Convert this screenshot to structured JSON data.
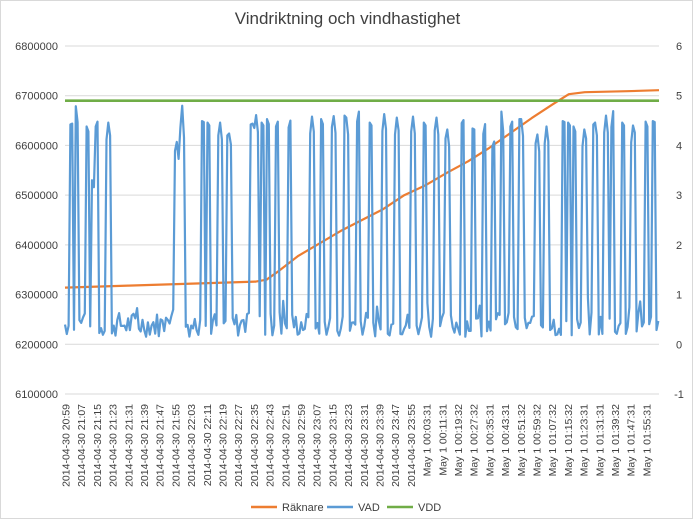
{
  "chart_data": {
    "type": "line",
    "title": "Vindriktning och vindhastighet",
    "primary_axis": {
      "ylim": [
        6100000,
        6800000
      ],
      "ticks": [
        6100000,
        6200000,
        6300000,
        6400000,
        6500000,
        6600000,
        6700000,
        6800000
      ]
    },
    "secondary_axis": {
      "ylim": [
        -1,
        6
      ],
      "ticks": [
        -1,
        0,
        1,
        2,
        3,
        4,
        5,
        6
      ]
    },
    "x_tick_labels": [
      "2014-04-30 20:59",
      "2014-04-30 21:07",
      "2014-04-30 21:15",
      "2014-04-30 21:23",
      "2014-04-30 21:31",
      "2014-04-30 21:39",
      "2014-04-30 21:47",
      "2014-04-30 21:55",
      "2014-04-30 22:03",
      "2014-04-30 22:11",
      "2014-04-30 22:19",
      "2014-04-30 22:27",
      "2014-04-30 22:35",
      "2014-04-30 22:43",
      "2014-04-30 22:51",
      "2014-04-30 22:59",
      "2014-04-30 23:07",
      "2014-04-30 23:15",
      "2014-04-30 23:23",
      "2014-04-30 23:31",
      "2014-04-30 23:39",
      "2014-04-30 23:47",
      "2014-04-30 23:55",
      "May  1 00:03:31",
      "May  1 00:11:31",
      "May  1 00:19:32",
      "May  1 00:27:32",
      "May  1 00:35:31",
      "May  1 00:43:31",
      "May  1 00:51:32",
      "May  1 00:59:32",
      "May  1 01:07:32",
      "May  1 01:15:32",
      "May  1 01:23:31",
      "May  1 01:31:31",
      "May  1 01:39:32",
      "May  1 01:47:31",
      "May  1 01:55:31"
    ],
    "series": [
      {
        "name": "Räknare",
        "axis": "primary",
        "color": "#ED7D31",
        "breakpoints": [
          [
            0,
            6314000
          ],
          [
            3,
            6316000
          ],
          [
            6,
            6318000
          ],
          [
            9,
            6320000
          ],
          [
            12,
            6322000
          ],
          [
            15,
            6324000
          ],
          [
            18,
            6326000
          ],
          [
            19,
            6330000
          ],
          [
            20,
            6345000
          ],
          [
            22,
            6378000
          ],
          [
            26,
            6428000
          ],
          [
            28,
            6450000
          ],
          [
            30,
            6472000
          ],
          [
            32,
            6500000
          ],
          [
            34,
            6520000
          ],
          [
            36,
            6545000
          ],
          [
            38,
            6568000
          ],
          [
            40,
            6595000
          ],
          [
            42,
            6625000
          ],
          [
            44,
            6655000
          ],
          [
            46,
            6683000
          ],
          [
            47.5,
            6703000
          ],
          [
            49,
            6707000
          ],
          [
            53,
            6709000
          ],
          [
            56,
            6711000
          ]
        ]
      },
      {
        "name": "VAD",
        "axis": "secondary",
        "color": "#5B9BD5",
        "peaks": [
          [
            0.6,
            4.6
          ],
          [
            1.1,
            4.65
          ],
          [
            2.1,
            4.5
          ],
          [
            2.6,
            3.4
          ],
          [
            3.0,
            4.6
          ],
          [
            4.1,
            4.5
          ],
          [
            10.5,
            4.15
          ],
          [
            11.0,
            4.6
          ],
          [
            13.0,
            4.65
          ],
          [
            13.5,
            4.6
          ],
          [
            14.6,
            4.5
          ],
          [
            15.5,
            4.3
          ],
          [
            17.6,
            4.6
          ],
          [
            18.0,
            4.65
          ],
          [
            18.6,
            4.6
          ],
          [
            19.1,
            4.65
          ],
          [
            20.0,
            4.6
          ],
          [
            21.2,
            4.6
          ],
          [
            23.3,
            4.6
          ],
          [
            24.2,
            4.65
          ],
          [
            25.3,
            4.65
          ],
          [
            26.5,
            4.6
          ],
          [
            27.6,
            4.6
          ],
          [
            28.8,
            4.6
          ],
          [
            30.1,
            4.65
          ],
          [
            31.3,
            4.6
          ],
          [
            32.8,
            4.6
          ],
          [
            33.9,
            4.6
          ],
          [
            35.0,
            4.6
          ],
          [
            36.0,
            4.4
          ],
          [
            37.5,
            4.65
          ],
          [
            38.5,
            4.5
          ],
          [
            39.5,
            4.35
          ],
          [
            40.4,
            4.2
          ],
          [
            41.2,
            4.5
          ],
          [
            42.1,
            4.6
          ],
          [
            43.0,
            4.55
          ],
          [
            44.5,
            4.3
          ],
          [
            45.4,
            4.4
          ],
          [
            47.0,
            4.65
          ],
          [
            47.5,
            4.6
          ],
          [
            48.0,
            4.5
          ],
          [
            49.0,
            4.4
          ],
          [
            50.0,
            4.5
          ],
          [
            51.0,
            4.6
          ],
          [
            51.6,
            4.55
          ],
          [
            52.6,
            4.6
          ],
          [
            53.6,
            4.5
          ],
          [
            54.8,
            4.6
          ],
          [
            55.5,
            4.65
          ]
        ],
        "baseline": 0.4
      },
      {
        "name": "VDD",
        "axis": "secondary",
        "color": "#70AD47",
        "value": 4.9
      }
    ],
    "legend_position": "bottom",
    "grid": "horizontal"
  }
}
